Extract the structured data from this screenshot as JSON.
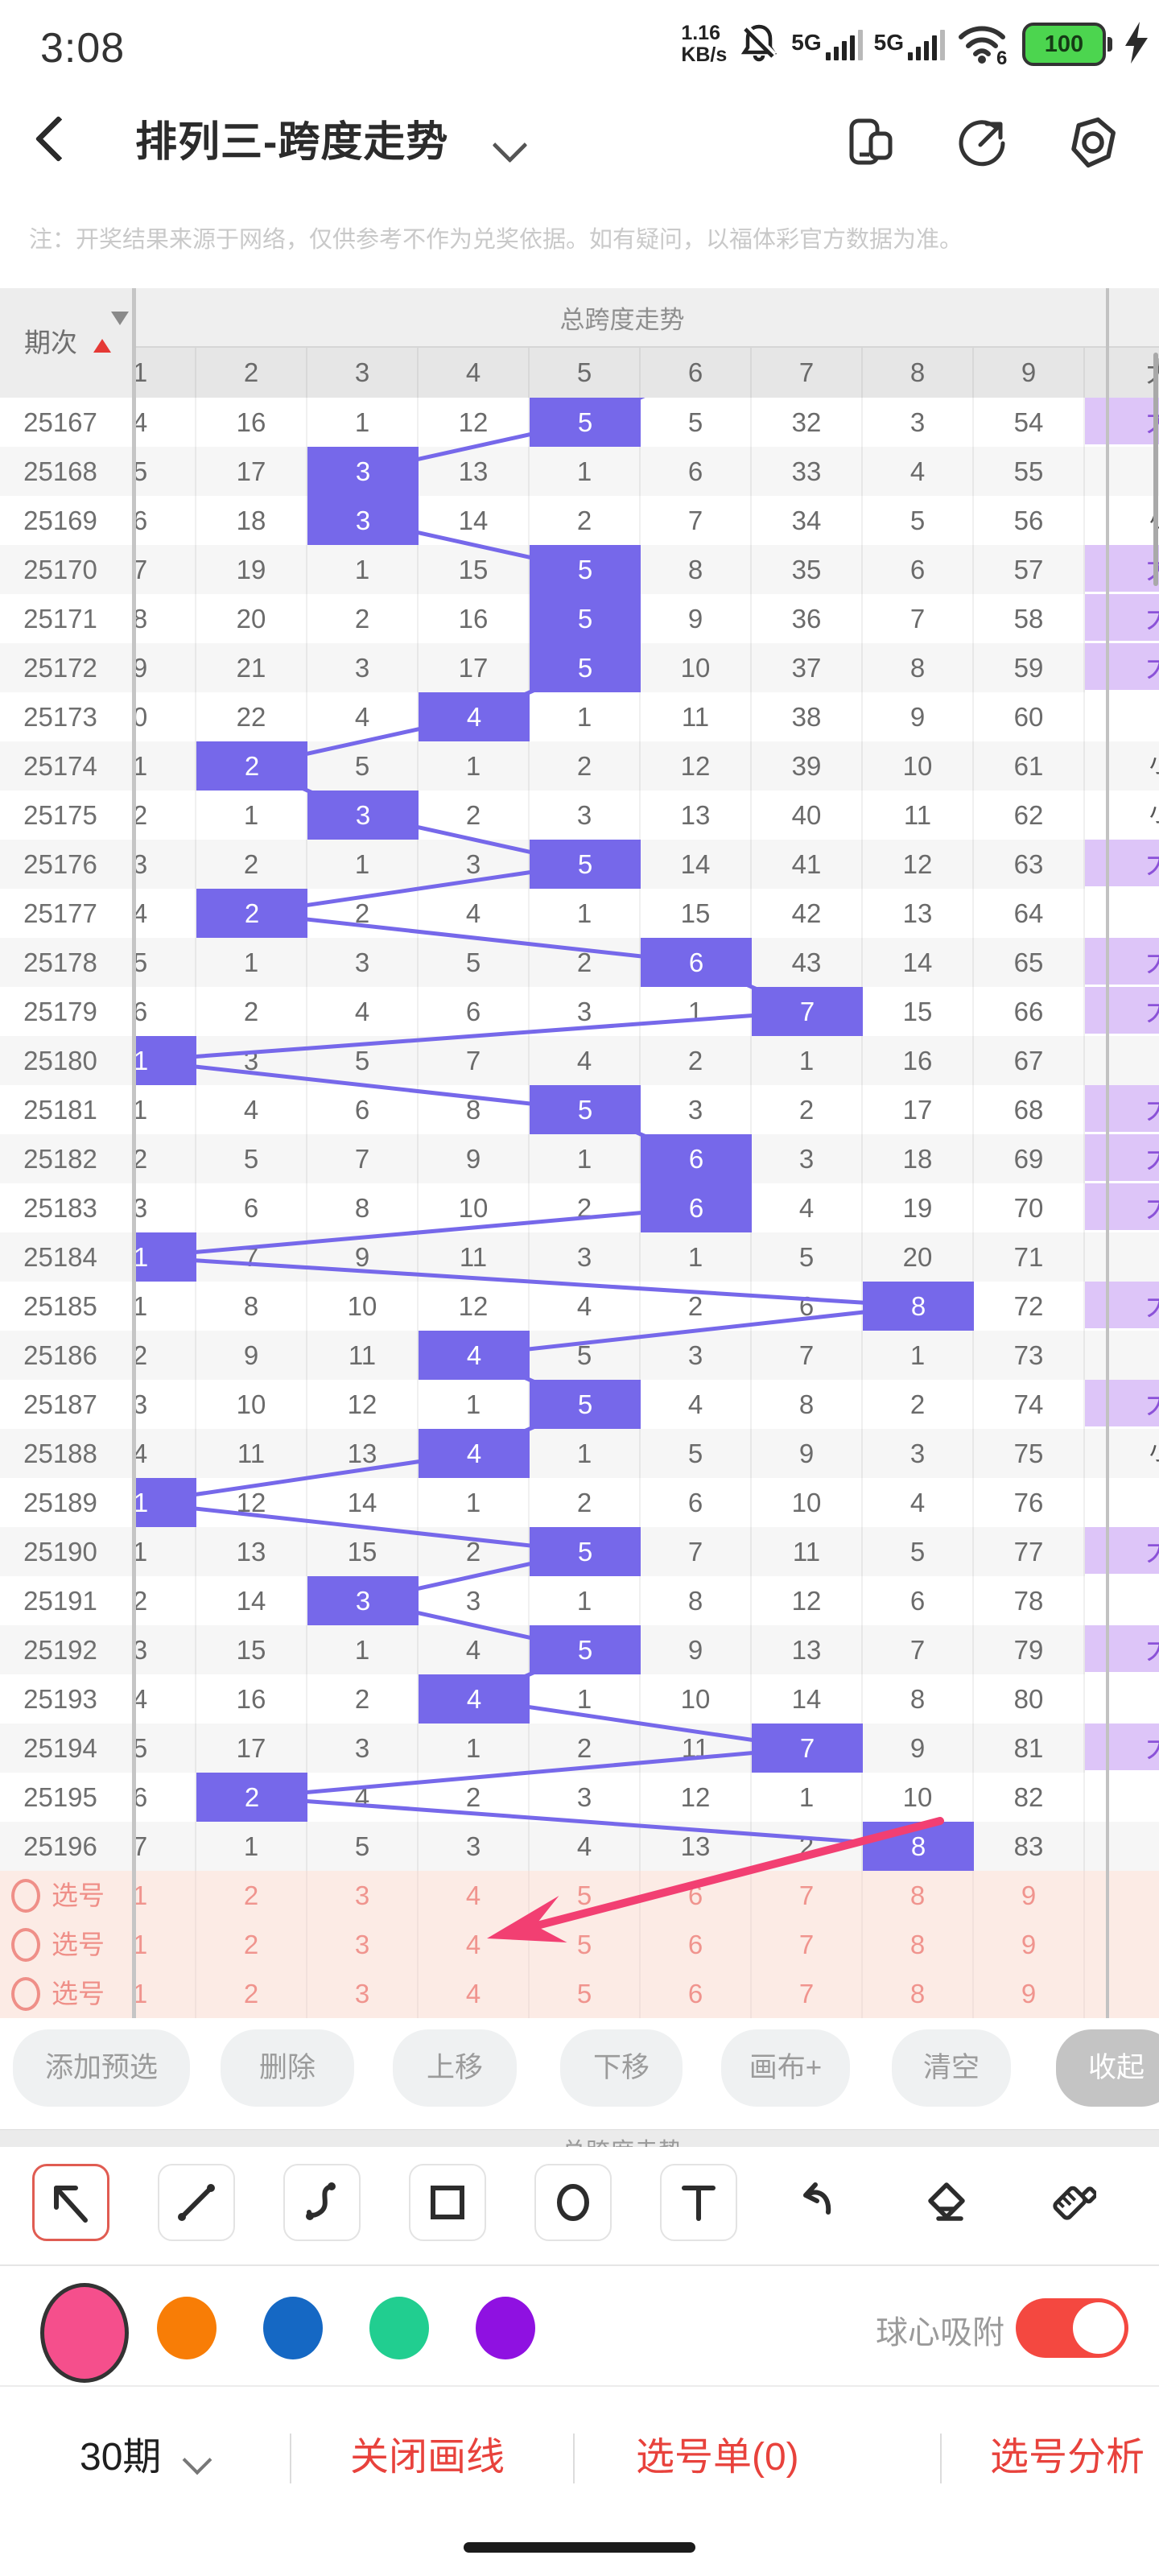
{
  "status_bar": {
    "time": "3:08",
    "net_speed_top": "1.16",
    "net_speed_bottom": "KB/s",
    "sim1_label": "5G",
    "sim2_label": "5G",
    "wifi_label": "6",
    "battery_percent": "100"
  },
  "header": {
    "title": "排列三-跨度走势",
    "icons": [
      "split-screen",
      "share",
      "settings"
    ]
  },
  "notice": "注：开奖结果来源于网络，仅供参考不作为兑奖依据。如有疑问，以福体彩官方数据为准。",
  "table": {
    "period_header": "期次",
    "span_header": "总跨度走势",
    "col_headers": [
      "1",
      "2",
      "3",
      "4",
      "5",
      "6",
      "7",
      "8",
      "9"
    ],
    "side_header": "大",
    "side_char_big": "大",
    "side_char_small": "小",
    "rows": [
      {
        "period": "25167",
        "values": [
          "4",
          "16",
          "1",
          "12",
          "5",
          "5",
          "32",
          "3",
          "54"
        ],
        "hl": 5,
        "side": "purple"
      },
      {
        "period": "25168",
        "values": [
          "5",
          "17",
          "3",
          "13",
          "1",
          "6",
          "33",
          "4",
          "55"
        ],
        "hl": 3,
        "side": "none"
      },
      {
        "period": "25169",
        "values": [
          "6",
          "18",
          "3",
          "14",
          "2",
          "7",
          "34",
          "5",
          "56"
        ],
        "hl": 3,
        "side": "dark"
      },
      {
        "period": "25170",
        "values": [
          "7",
          "19",
          "1",
          "15",
          "5",
          "8",
          "35",
          "6",
          "57"
        ],
        "hl": 5,
        "side": "purple"
      },
      {
        "period": "25171",
        "values": [
          "8",
          "20",
          "2",
          "16",
          "5",
          "9",
          "36",
          "7",
          "58"
        ],
        "hl": 5,
        "side": "purple"
      },
      {
        "period": "25172",
        "values": [
          "9",
          "21",
          "3",
          "17",
          "5",
          "10",
          "37",
          "8",
          "59"
        ],
        "hl": 5,
        "side": "purple"
      },
      {
        "period": "25173",
        "values": [
          "0",
          "22",
          "4",
          "4",
          "1",
          "11",
          "38",
          "9",
          "60"
        ],
        "hl": 4,
        "side": "none"
      },
      {
        "period": "25174",
        "values": [
          "1",
          "2",
          "5",
          "1",
          "2",
          "12",
          "39",
          "10",
          "61"
        ],
        "hl": 2,
        "side": "dark"
      },
      {
        "period": "25175",
        "values": [
          "2",
          "1",
          "3",
          "2",
          "3",
          "13",
          "40",
          "11",
          "62"
        ],
        "hl": 3,
        "side": "dark"
      },
      {
        "period": "25176",
        "values": [
          "3",
          "2",
          "1",
          "3",
          "5",
          "14",
          "41",
          "12",
          "63"
        ],
        "hl": 5,
        "side": "purple"
      },
      {
        "period": "25177",
        "values": [
          "4",
          "2",
          "2",
          "4",
          "1",
          "15",
          "42",
          "13",
          "64"
        ],
        "hl": 2,
        "side": "none"
      },
      {
        "period": "25178",
        "values": [
          "5",
          "1",
          "3",
          "5",
          "2",
          "6",
          "43",
          "14",
          "65"
        ],
        "hl": 6,
        "side": "purple"
      },
      {
        "period": "25179",
        "values": [
          "6",
          "2",
          "4",
          "6",
          "3",
          "1",
          "7",
          "15",
          "66"
        ],
        "hl": 7,
        "side": "purple"
      },
      {
        "period": "25180",
        "values": [
          "1",
          "3",
          "5",
          "7",
          "4",
          "2",
          "1",
          "16",
          "67"
        ],
        "hl": 1,
        "side": "none"
      },
      {
        "period": "25181",
        "values": [
          "1",
          "4",
          "6",
          "8",
          "5",
          "3",
          "2",
          "17",
          "68"
        ],
        "hl": 5,
        "side": "purple"
      },
      {
        "period": "25182",
        "values": [
          "2",
          "5",
          "7",
          "9",
          "1",
          "6",
          "3",
          "18",
          "69"
        ],
        "hl": 6,
        "side": "purple"
      },
      {
        "period": "25183",
        "values": [
          "3",
          "6",
          "8",
          "10",
          "2",
          "6",
          "4",
          "19",
          "70"
        ],
        "hl": 6,
        "side": "purple"
      },
      {
        "period": "25184",
        "values": [
          "1",
          "7",
          "9",
          "11",
          "3",
          "1",
          "5",
          "20",
          "71"
        ],
        "hl": 1,
        "side": "none"
      },
      {
        "period": "25185",
        "values": [
          "1",
          "8",
          "10",
          "12",
          "4",
          "2",
          "6",
          "8",
          "72"
        ],
        "hl": 8,
        "side": "purple"
      },
      {
        "period": "25186",
        "values": [
          "2",
          "9",
          "11",
          "4",
          "5",
          "3",
          "7",
          "1",
          "73"
        ],
        "hl": 4,
        "side": "none"
      },
      {
        "period": "25187",
        "values": [
          "3",
          "10",
          "12",
          "1",
          "5",
          "4",
          "8",
          "2",
          "74"
        ],
        "hl": 5,
        "side": "purple"
      },
      {
        "period": "25188",
        "values": [
          "4",
          "11",
          "13",
          "4",
          "1",
          "5",
          "9",
          "3",
          "75"
        ],
        "hl": 4,
        "side": "dark"
      },
      {
        "period": "25189",
        "values": [
          "1",
          "12",
          "14",
          "1",
          "2",
          "6",
          "10",
          "4",
          "76"
        ],
        "hl": 1,
        "side": "none"
      },
      {
        "period": "25190",
        "values": [
          "1",
          "13",
          "15",
          "2",
          "5",
          "7",
          "11",
          "5",
          "77"
        ],
        "hl": 5,
        "side": "purple"
      },
      {
        "period": "25191",
        "values": [
          "2",
          "14",
          "3",
          "3",
          "1",
          "8",
          "12",
          "6",
          "78"
        ],
        "hl": 3,
        "side": "none"
      },
      {
        "period": "25192",
        "values": [
          "3",
          "15",
          "1",
          "4",
          "5",
          "9",
          "13",
          "7",
          "79"
        ],
        "hl": 5,
        "side": "purple"
      },
      {
        "period": "25193",
        "values": [
          "4",
          "16",
          "2",
          "4",
          "1",
          "10",
          "14",
          "8",
          "80"
        ],
        "hl": 4,
        "side": "none"
      },
      {
        "period": "25194",
        "values": [
          "5",
          "17",
          "3",
          "1",
          "2",
          "11",
          "7",
          "9",
          "81"
        ],
        "hl": 7,
        "side": "purple"
      },
      {
        "period": "25195",
        "values": [
          "6",
          "2",
          "4",
          "2",
          "3",
          "12",
          "1",
          "10",
          "82"
        ],
        "hl": 2,
        "side": "none"
      },
      {
        "period": "25196",
        "values": [
          "7",
          "1",
          "5",
          "3",
          "4",
          "13",
          "2",
          "8",
          "83"
        ],
        "hl": 8,
        "side": "none"
      }
    ],
    "pick_rows": [
      {
        "label": "选号",
        "values": [
          "1",
          "2",
          "3",
          "4",
          "5",
          "6",
          "7",
          "8",
          "9"
        ]
      },
      {
        "label": "选号",
        "values": [
          "1",
          "2",
          "3",
          "4",
          "5",
          "6",
          "7",
          "8",
          "9"
        ]
      },
      {
        "label": "选号",
        "values": [
          "1",
          "2",
          "3",
          "4",
          "5",
          "6",
          "7",
          "8",
          "9"
        ]
      }
    ]
  },
  "actions": [
    "添加预选",
    "删除",
    "上移",
    "下移",
    "画布+",
    "清空",
    "收起"
  ],
  "next_section_header": "总跨度走势",
  "draw_toolbar": {
    "tools": [
      "arrow",
      "line",
      "curve",
      "rect",
      "circle",
      "text",
      "undo",
      "eraser",
      "brush"
    ],
    "selected": "arrow"
  },
  "palette": {
    "colors": [
      "#f54f8c",
      "#f87d06",
      "#1568c4",
      "#21ce90",
      "#8f11e1"
    ],
    "selected_color": "#f54f8c",
    "snap_label": "球心吸附",
    "snap_on": true
  },
  "bottom_bar": {
    "periods": "30期",
    "close_draw": "关闭画线",
    "pick_list": "选号单(0)",
    "analysis": "选号分析"
  },
  "colors": {
    "highlight": "#7668ea",
    "trend_line": "#7668ea",
    "side_purple_bg": "#ddc5f8",
    "side_purple_text": "#8b52d8",
    "pick_row_bg": "#fcebe5",
    "pick_text": "#f0948e",
    "annotation_arrow": "#f23f72",
    "accent_red": "#e8423c",
    "toggle_on": "#f44840",
    "battery_green": "#4cd54f"
  }
}
